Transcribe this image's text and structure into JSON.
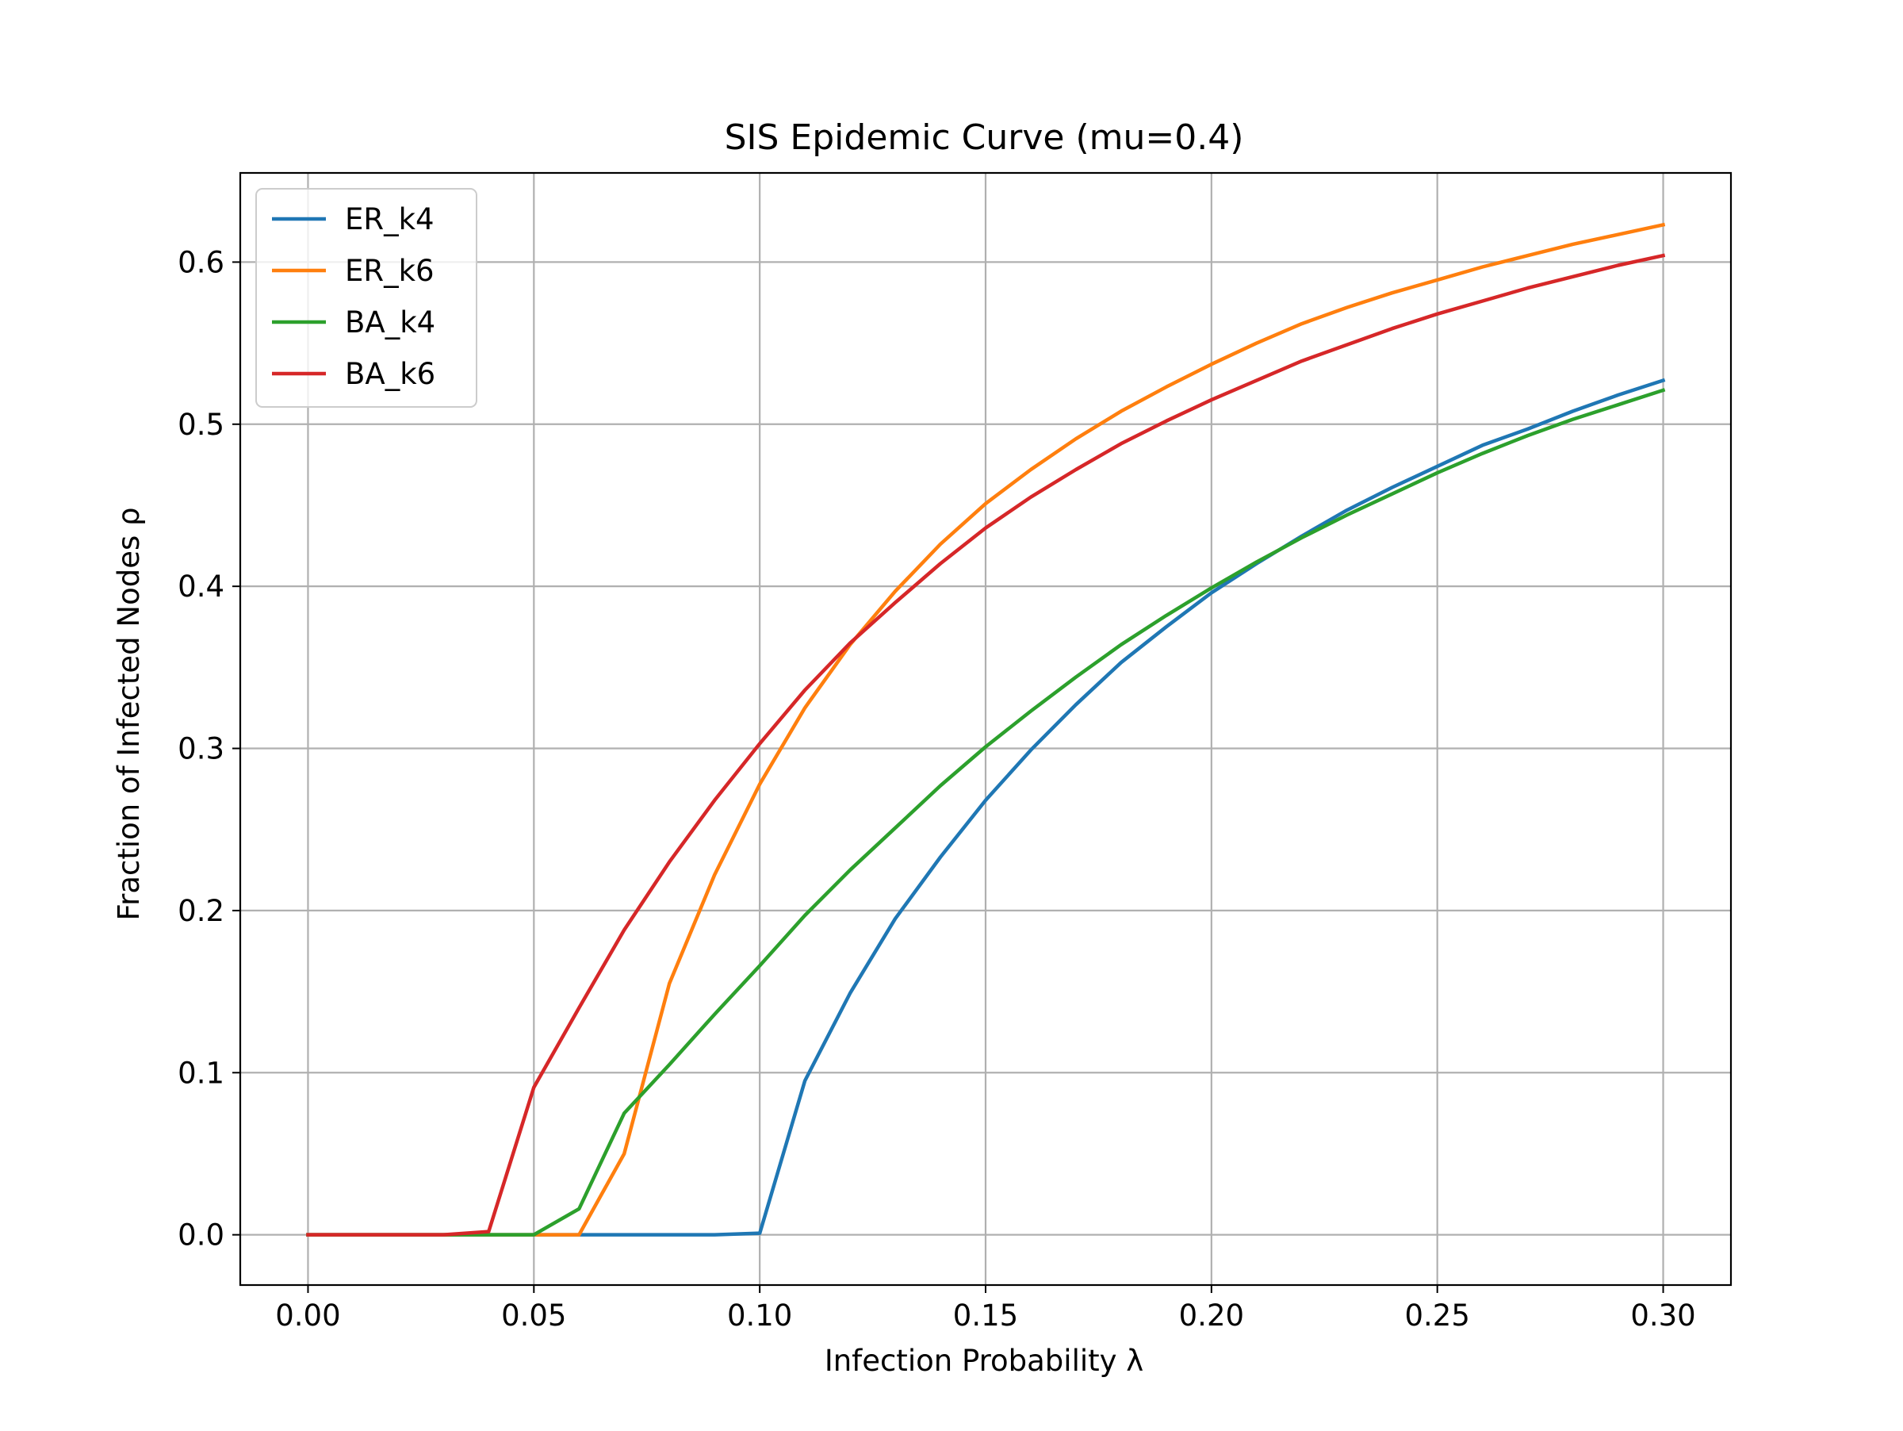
{
  "chart_data": {
    "type": "line",
    "title": "SIS Epidemic Curve (mu=0.4)",
    "xlabel": "Infection Probability λ",
    "ylabel": "Fraction of Infected Nodes ρ",
    "xlim": [
      -0.015,
      0.315
    ],
    "ylim": [
      -0.031,
      0.655
    ],
    "xticks": [
      0.0,
      0.05,
      0.1,
      0.15,
      0.2,
      0.25,
      0.3
    ],
    "xtick_labels": [
      "0.00",
      "0.05",
      "0.10",
      "0.15",
      "0.20",
      "0.25",
      "0.30"
    ],
    "yticks": [
      0.0,
      0.1,
      0.2,
      0.3,
      0.4,
      0.5,
      0.6
    ],
    "ytick_labels": [
      "0.0",
      "0.1",
      "0.2",
      "0.3",
      "0.4",
      "0.5",
      "0.6"
    ],
    "grid": true,
    "legend_position": "upper-left",
    "x": [
      0.0,
      0.01,
      0.02,
      0.03,
      0.04,
      0.05,
      0.06,
      0.07,
      0.08,
      0.09,
      0.1,
      0.11,
      0.12,
      0.13,
      0.14,
      0.15,
      0.16,
      0.17,
      0.18,
      0.19,
      0.2,
      0.21,
      0.22,
      0.23,
      0.24,
      0.25,
      0.26,
      0.27,
      0.28,
      0.29,
      0.3
    ],
    "series": [
      {
        "name": "ER_k4",
        "color": "#1f77b4",
        "values": [
          0.0,
          0.0,
          0.0,
          0.0,
          0.0,
          0.0,
          0.0,
          0.0,
          0.0,
          0.0,
          0.001,
          0.095,
          0.149,
          0.195,
          0.233,
          0.268,
          0.299,
          0.327,
          0.353,
          0.375,
          0.396,
          0.414,
          0.431,
          0.447,
          0.461,
          0.474,
          0.487,
          0.497,
          0.508,
          0.518,
          0.527
        ]
      },
      {
        "name": "ER_k6",
        "color": "#ff7f0e",
        "values": [
          0.0,
          0.0,
          0.0,
          0.0,
          0.0,
          0.0,
          0.0,
          0.05,
          0.155,
          0.222,
          0.278,
          0.325,
          0.364,
          0.397,
          0.426,
          0.451,
          0.472,
          0.491,
          0.508,
          0.523,
          0.537,
          0.55,
          0.562,
          0.572,
          0.581,
          0.589,
          0.597,
          0.604,
          0.611,
          0.617,
          0.623
        ]
      },
      {
        "name": "BA_k4",
        "color": "#2ca02c",
        "values": [
          0.0,
          0.0,
          0.0,
          0.0,
          0.0,
          0.0,
          0.016,
          0.075,
          0.105,
          0.136,
          0.166,
          0.197,
          0.225,
          0.251,
          0.277,
          0.301,
          0.323,
          0.344,
          0.364,
          0.382,
          0.399,
          0.415,
          0.43,
          0.444,
          0.457,
          0.47,
          0.482,
          0.493,
          0.503,
          0.512,
          0.521
        ]
      },
      {
        "name": "BA_k6",
        "color": "#d62728",
        "values": [
          0.0,
          0.0,
          0.0,
          0.0,
          0.002,
          0.091,
          0.14,
          0.188,
          0.23,
          0.268,
          0.303,
          0.336,
          0.365,
          0.39,
          0.414,
          0.436,
          0.455,
          0.472,
          0.488,
          0.502,
          0.515,
          0.527,
          0.539,
          0.549,
          0.559,
          0.568,
          0.576,
          0.584,
          0.591,
          0.598,
          0.604
        ]
      }
    ]
  }
}
